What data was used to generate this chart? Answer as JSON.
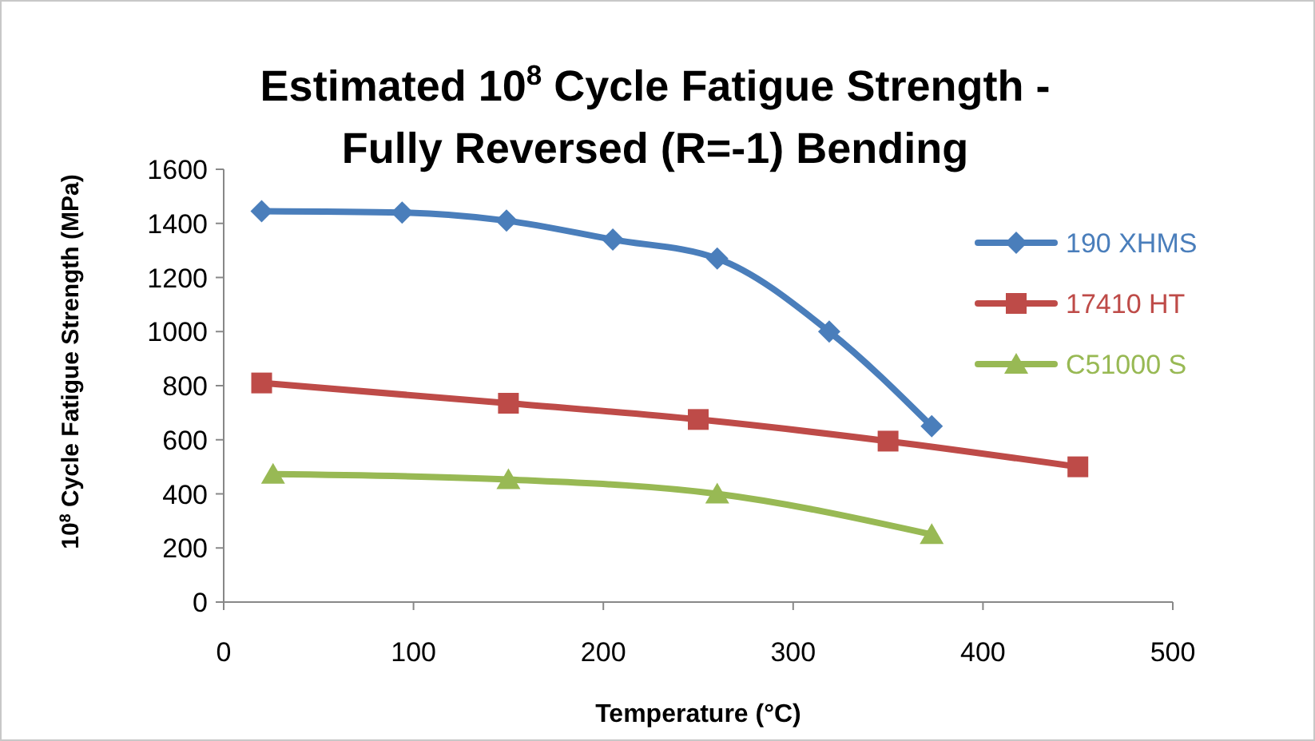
{
  "chart_data": {
    "type": "line",
    "title": "Estimated 10$^{8}$ Cycle Fatigue Strength - Fully Reversed (R=-1) Bending",
    "xlabel": "Temperature (°C)",
    "ylabel": "10$^{8}$ Cycle Fatigue Strength (MPa)",
    "series": [
      {
        "name": "190 XHMS",
        "color": "#4a7ebb",
        "marker": "diamond",
        "x": [
          20,
          94,
          149,
          205,
          260,
          319,
          373
        ],
        "values": [
          1445,
          1440,
          1410,
          1340,
          1270,
          1000,
          650
        ]
      },
      {
        "name": "17410 HT",
        "color": "#be4b48",
        "marker": "square",
        "x": [
          20,
          150,
          250,
          350,
          450
        ],
        "values": [
          810,
          735,
          675,
          595,
          500
        ]
      },
      {
        "name": "C51000 S",
        "color": "#98b954",
        "marker": "triangle",
        "x": [
          26,
          150,
          260,
          373
        ],
        "values": [
          473,
          453,
          400,
          250
        ]
      }
    ],
    "xlim": [
      0,
      500
    ],
    "xticks": [
      0,
      100,
      200,
      300,
      400,
      500
    ],
    "ylim": [
      0,
      1600
    ],
    "yticks": [
      0,
      200,
      400,
      600,
      800,
      1000,
      1200,
      1400,
      1600
    ],
    "grid": false,
    "legend": "right",
    "line_style": "solid"
  }
}
